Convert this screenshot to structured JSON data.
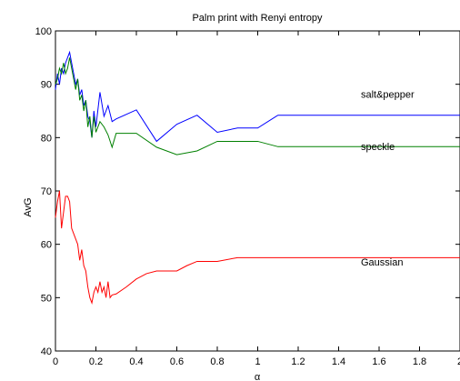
{
  "chart_data": {
    "type": "line",
    "title": "Palm print with Renyi entropy",
    "xlabel": "α",
    "ylabel": "AvG",
    "xlim": [
      0,
      2
    ],
    "ylim": [
      40,
      100
    ],
    "xticks": [
      "0",
      "0.2",
      "0.4",
      "0.6",
      "0.8",
      "1",
      "1.2",
      "1.4",
      "1.6",
      "1.8",
      "2"
    ],
    "yticks": [
      "40",
      "50",
      "60",
      "70",
      "80",
      "90",
      "100"
    ],
    "grid": false,
    "series": [
      {
        "name": "salt&pepper",
        "color": "#0000ff",
        "label_at": [
          1.51,
          87.5
        ],
        "x": [
          0.0,
          0.01,
          0.02,
          0.03,
          0.04,
          0.05,
          0.06,
          0.07,
          0.08,
          0.09,
          0.1,
          0.11,
          0.12,
          0.13,
          0.14,
          0.15,
          0.16,
          0.17,
          0.18,
          0.19,
          0.2,
          0.22,
          0.24,
          0.26,
          0.28,
          0.3,
          0.4,
          0.5,
          0.6,
          0.7,
          0.8,
          0.9,
          1.0,
          1.1,
          1.2,
          1.4,
          1.6,
          1.8,
          2.0
        ],
        "y": [
          89,
          92,
          90,
          93,
          92,
          94,
          95,
          96,
          94,
          92,
          90,
          91,
          88,
          89,
          86,
          87,
          84,
          83,
          80,
          85,
          82,
          88.5,
          84,
          86,
          83,
          83.5,
          85.2,
          79.3,
          82.5,
          84.2,
          81,
          81.8,
          81.8,
          84.2,
          84.2,
          84.2,
          84.2,
          84.2,
          84.2
        ]
      },
      {
        "name": "speckle",
        "color": "#008000",
        "label_at": [
          1.51,
          77.7
        ],
        "x": [
          0.0,
          0.01,
          0.02,
          0.03,
          0.04,
          0.05,
          0.06,
          0.07,
          0.08,
          0.09,
          0.1,
          0.11,
          0.12,
          0.13,
          0.14,
          0.15,
          0.16,
          0.17,
          0.18,
          0.19,
          0.2,
          0.22,
          0.24,
          0.26,
          0.28,
          0.3,
          0.4,
          0.5,
          0.6,
          0.7,
          0.8,
          0.9,
          1.0,
          1.1,
          1.2,
          1.4,
          1.6,
          1.8,
          2.0
        ],
        "y": [
          90,
          91,
          93,
          92,
          94,
          92,
          93,
          95,
          93,
          91,
          89,
          91,
          87,
          88,
          85,
          87,
          82,
          84,
          80,
          84,
          81,
          83,
          82,
          80.5,
          78.2,
          80.8,
          80.8,
          78.2,
          76.8,
          77.5,
          79.3,
          79.3,
          79.3,
          78.3,
          78.3,
          78.3,
          78.3,
          78.3,
          78.3
        ]
      },
      {
        "name": "Gaussian",
        "color": "#ff0000",
        "label_at": [
          1.51,
          56
        ],
        "x": [
          0.0,
          0.01,
          0.02,
          0.03,
          0.04,
          0.05,
          0.06,
          0.07,
          0.08,
          0.09,
          0.1,
          0.11,
          0.12,
          0.13,
          0.14,
          0.15,
          0.16,
          0.17,
          0.18,
          0.19,
          0.2,
          0.21,
          0.22,
          0.23,
          0.24,
          0.25,
          0.26,
          0.27,
          0.28,
          0.3,
          0.35,
          0.4,
          0.45,
          0.5,
          0.55,
          0.6,
          0.65,
          0.7,
          0.8,
          0.9,
          1.0,
          1.2,
          1.4,
          1.6,
          1.8,
          2.0
        ],
        "y": [
          65,
          68,
          70,
          63,
          66,
          69,
          69,
          68,
          63,
          62,
          61,
          60,
          57,
          59,
          56,
          55,
          52,
          50,
          49,
          51,
          52,
          51,
          53,
          51,
          52,
          50,
          53,
          50,
          50.5,
          50.7,
          52,
          53.5,
          54.5,
          55,
          55,
          55,
          56,
          56.8,
          56.8,
          57.5,
          57.5,
          57.5,
          57.5,
          57.5,
          57.5,
          57.5
        ]
      }
    ]
  }
}
